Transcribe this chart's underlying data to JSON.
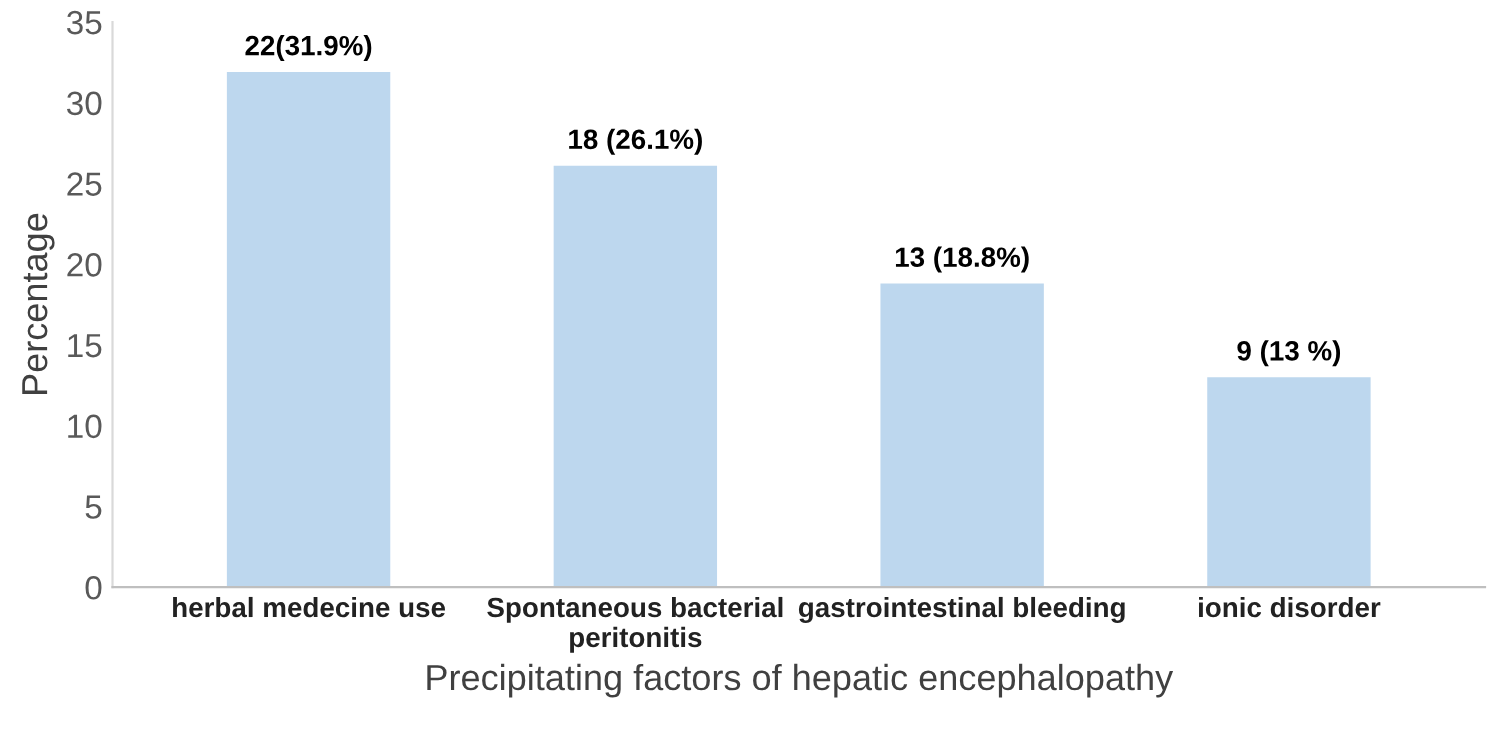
{
  "chart_data": {
    "type": "bar",
    "xlabel": "Precipitating factors of hepatic encephalopathy",
    "ylabel": "Percentage",
    "categories": [
      "herbal medecine use",
      "Spontaneous bacterial\nperitonitis",
      "gastrointestinal bleeding",
      "ionic disorder"
    ],
    "values": [
      31.9,
      26.1,
      18.8,
      13
    ],
    "value_labels": [
      "22(31.9%)",
      "18 (26.1%)",
      "13 (18.8%)",
      "9 (13 %)"
    ],
    "color": "#bdd7ee",
    "ylim": [
      0,
      35
    ],
    "yticks": [
      0,
      5,
      10,
      15,
      20,
      25,
      30,
      35
    ],
    "grid": false,
    "legend": false
  }
}
